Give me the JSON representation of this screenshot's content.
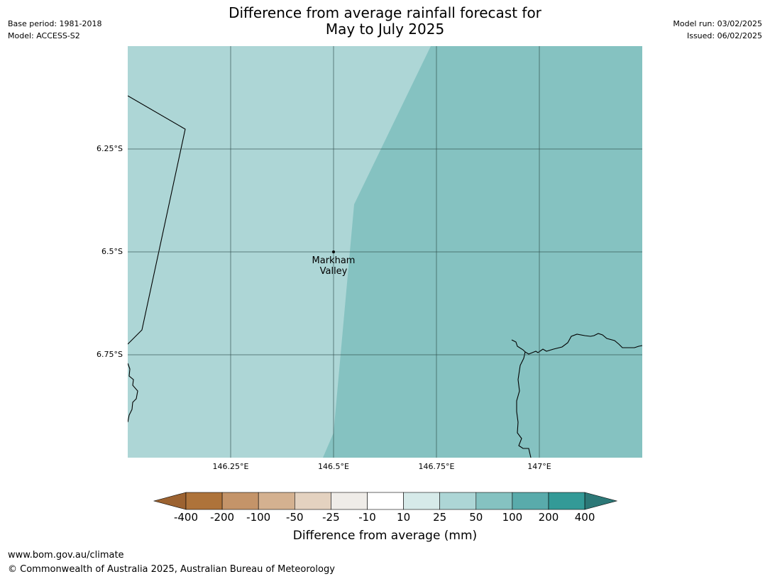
{
  "title": {
    "line1": "Difference from average rainfall forecast for",
    "line2": "May to July 2025"
  },
  "meta_left": {
    "base_period": "Base period: 1981-2018",
    "model": "Model: ACCESS-S2"
  },
  "meta_right": {
    "model_run": "Model run: 03/02/2025",
    "issued": "Issued: 06/02/2025"
  },
  "map": {
    "lat_ticks": [
      "6.25°S",
      "6.5°S",
      "6.75°S"
    ],
    "lon_ticks": [
      "146.25°E",
      "146.5°E",
      "146.75°E",
      "147°E"
    ],
    "place": {
      "name_line1": "Markham",
      "name_line2": "Valley",
      "lon": 146.5,
      "lat": -6.5
    },
    "extent": {
      "lon": [
        146.0,
        147.25
      ],
      "lat": [
        -7.0,
        -6.0
      ]
    },
    "regions": [
      {
        "category": "25 to 50",
        "color": "#add6d6"
      },
      {
        "category": "50 to 100",
        "color": "#85c2c1"
      }
    ]
  },
  "colorbar": {
    "title": "Difference from average (mm)",
    "labels": [
      "-400",
      "-200",
      "-100",
      "-50",
      "-25",
      "-10",
      "10",
      "25",
      "50",
      "100",
      "200",
      "400"
    ],
    "colors": [
      "#9c6230",
      "#ae733a",
      "#c49469",
      "#d4b190",
      "#e4d2c0",
      "#efece8",
      "#ffffff",
      "#d6eae9",
      "#add6d6",
      "#85c2c1",
      "#59abab",
      "#339a97",
      "#2c7877"
    ]
  },
  "footer": {
    "url": "www.bom.gov.au/climate",
    "copyright": "© Commonwealth of Australia 2025, Australian Bureau of Meteorology"
  }
}
